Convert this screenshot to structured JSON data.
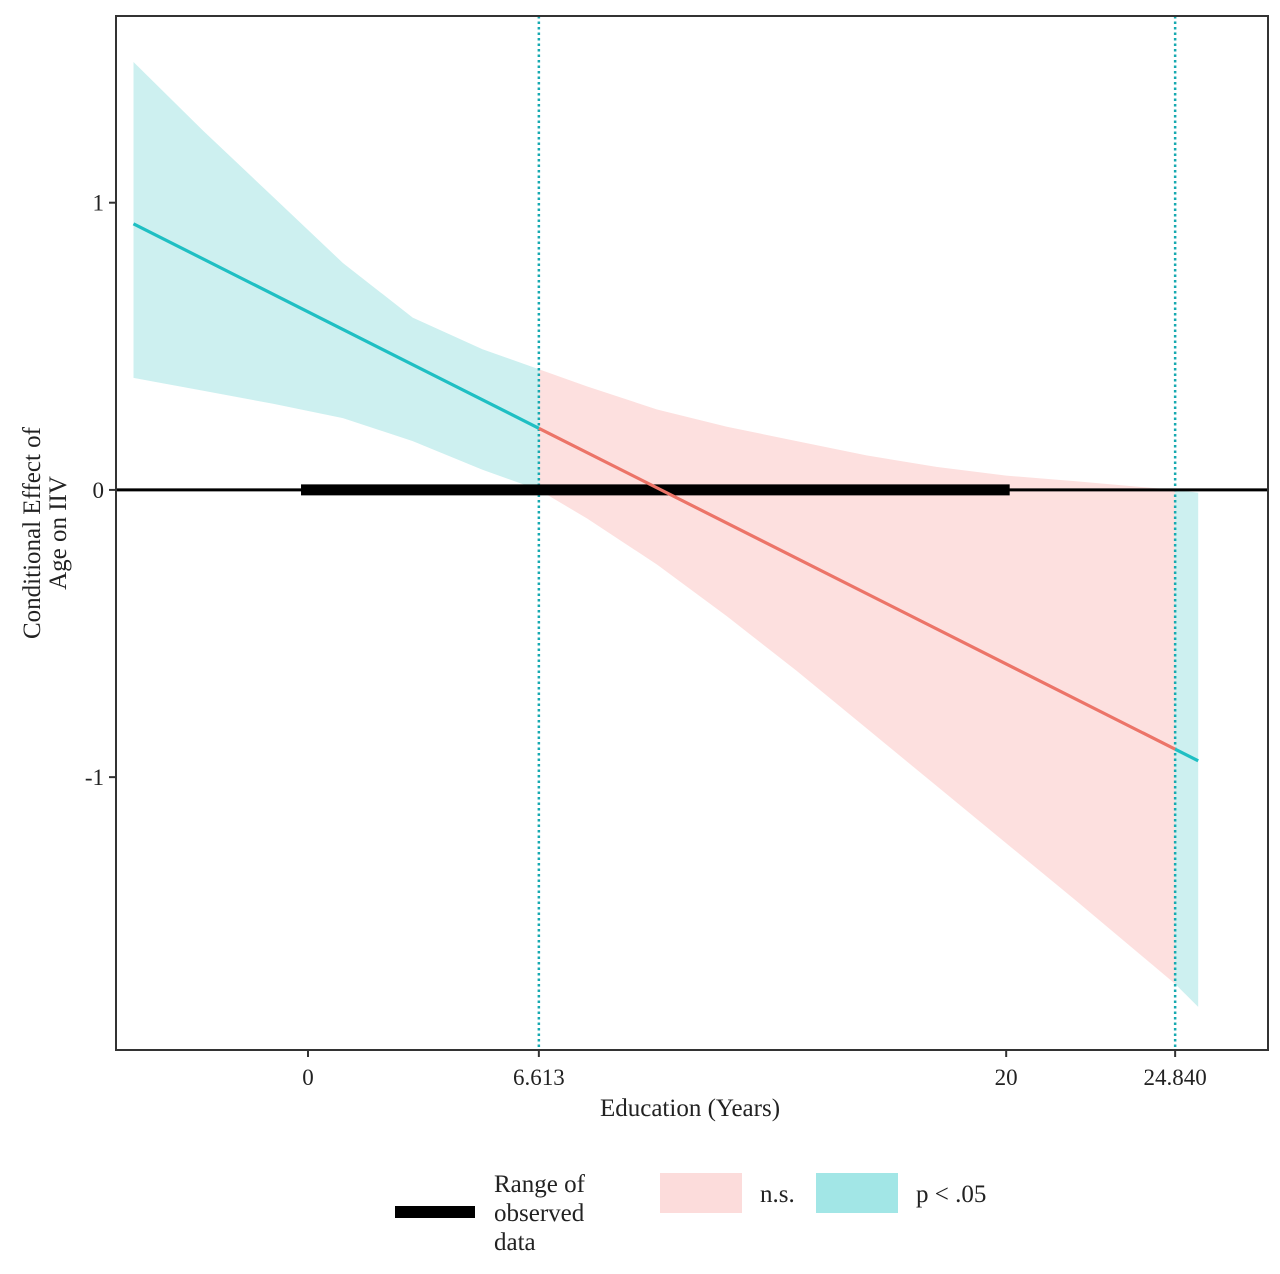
{
  "chart_data": {
    "type": "line",
    "xlabel": "Education (Years)",
    "ylabel": "Conditional Effect of\nAge on IIV",
    "xlim": [
      -5.5,
      27.5
    ],
    "ylim": [
      -1.95,
      1.65
    ],
    "x_ticks": [
      {
        "value": 0,
        "label": "0"
      },
      {
        "value": 6.613,
        "label": "6.613"
      },
      {
        "value": 20,
        "label": "20"
      },
      {
        "value": 24.84,
        "label": "24.840"
      }
    ],
    "y_ticks": [
      {
        "value": 1,
        "label": "1"
      },
      {
        "value": 0,
        "label": "0"
      },
      {
        "value": -1,
        "label": "-1"
      }
    ],
    "johnson_neyman_points": [
      6.613,
      24.84
    ],
    "observed_range": [
      -0.2,
      20.1
    ],
    "effect_line": {
      "intercept": 0.62,
      "slope": -0.0613
    },
    "x_range": [
      -5,
      25.5
    ],
    "confidence_band": [
      {
        "x": -5,
        "lower": 0.39,
        "upper": 1.49
      },
      {
        "x": -3,
        "lower": 0.345,
        "upper": 1.25
      },
      {
        "x": -1,
        "lower": 0.3,
        "upper": 1.02
      },
      {
        "x": 1,
        "lower": 0.25,
        "upper": 0.79
      },
      {
        "x": 3,
        "lower": 0.17,
        "upper": 0.6
      },
      {
        "x": 5,
        "lower": 0.07,
        "upper": 0.49
      },
      {
        "x": 6.613,
        "lower": 0.0,
        "upper": 0.42
      },
      {
        "x": 8,
        "lower": -0.1,
        "upper": 0.36
      },
      {
        "x": 10,
        "lower": -0.26,
        "upper": 0.28
      },
      {
        "x": 12,
        "lower": -0.44,
        "upper": 0.22
      },
      {
        "x": 14,
        "lower": -0.63,
        "upper": 0.17
      },
      {
        "x": 16,
        "lower": -0.83,
        "upper": 0.12
      },
      {
        "x": 18,
        "lower": -1.03,
        "upper": 0.08
      },
      {
        "x": 20,
        "lower": -1.23,
        "upper": 0.05
      },
      {
        "x": 22,
        "lower": -1.43,
        "upper": 0.03
      },
      {
        "x": 24.84,
        "lower": -1.72,
        "upper": 0.0
      },
      {
        "x": 25.5,
        "lower": -1.8,
        "upper": -0.01
      }
    ],
    "legend": [
      {
        "key": "range",
        "label": "Range of observed data"
      },
      {
        "key": "ns",
        "label": "n.s."
      },
      {
        "key": "sig",
        "label": "p < .05"
      }
    ],
    "legend_position": "bottom",
    "colors": {
      "significant_line": "#1fbfc3",
      "significant_fill": "#cdf0f0",
      "ns_line": "#ec7468",
      "ns_fill": "#fde0df",
      "legend_ns_fill": "#fcdcdb",
      "legend_sig_fill": "#a2e6e6",
      "jn_line": "#16a9b0",
      "zero_line": "#000000",
      "range_bar": "#000000"
    }
  }
}
